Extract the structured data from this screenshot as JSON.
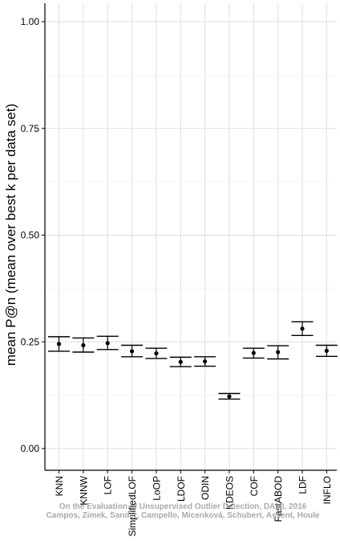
{
  "chart_data": {
    "type": "scatter",
    "title": "",
    "xlabel": "",
    "ylabel": "mean P@n (mean over best k per data set)",
    "ylim": [
      0,
      1
    ],
    "y_ticks": [
      "0.00",
      "0.25",
      "0.50",
      "0.75",
      "1.00"
    ],
    "grid": true,
    "error_bars": true,
    "categories": [
      "KNN",
      "KNNW",
      "LOF",
      "SimplifiedLOF",
      "LoOP",
      "LDOF",
      "ODIN",
      "KDEOS",
      "COF",
      "FastABOD",
      "LDF",
      "INFLO"
    ],
    "series": [
      {
        "values": [
          0.245,
          0.242,
          0.247,
          0.228,
          0.223,
          0.203,
          0.204,
          0.122,
          0.224,
          0.226,
          0.281,
          0.229
        ],
        "lower": [
          0.228,
          0.226,
          0.232,
          0.215,
          0.211,
          0.192,
          0.193,
          0.116,
          0.212,
          0.21,
          0.265,
          0.216
        ],
        "upper": [
          0.262,
          0.259,
          0.263,
          0.242,
          0.235,
          0.214,
          0.215,
          0.129,
          0.235,
          0.241,
          0.297,
          0.242
        ]
      }
    ],
    "watermark": [
      "On the Evaluation of Unsupervised Outlier Detection, DAMI, 2016",
      "Campos, Zimek, Sander, Campello, Micenková, Schubert, Assent, Houle"
    ]
  }
}
